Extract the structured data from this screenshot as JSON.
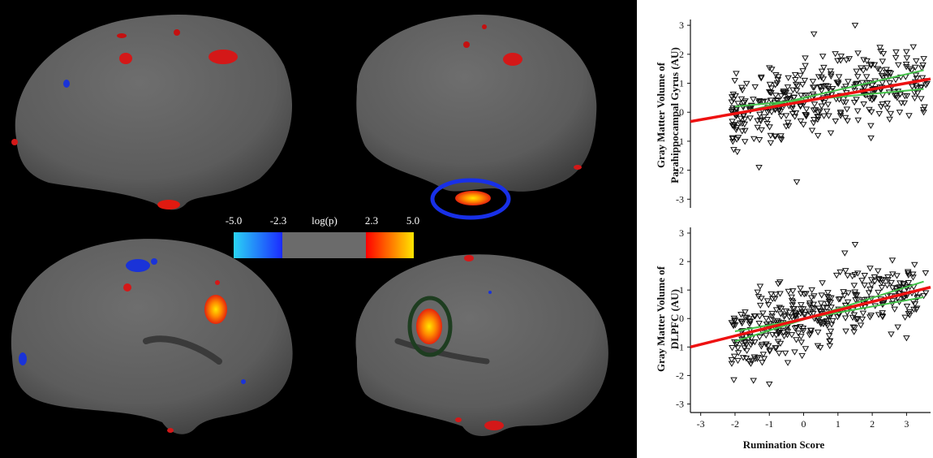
{
  "colorbar": {
    "labels": [
      "-5.0",
      "-2.3",
      "log(p)",
      "2.3",
      "5.0"
    ],
    "colors": {
      "negative_start": "#2ad4f5",
      "negative_end": "#1b2bff",
      "neutral": "#6b6b6b",
      "positive_start": "#ff0000",
      "positive_end": "#ffe600"
    }
  },
  "highlights": {
    "top_right_circle_color": "#1830e8",
    "bottom_right_circle_color": "#1e3d20"
  },
  "chart_data": [
    {
      "type": "scatter",
      "ylabel_lines": [
        "Gray Matter Volume of",
        "Parahippocampal Gyrus (AU)"
      ],
      "xlabel": "",
      "xlim": [
        -3.3,
        3.7
      ],
      "ylim": [
        -3.3,
        3.2
      ],
      "yticks": [
        "-3",
        "-2",
        "-1",
        "0",
        "1",
        "2",
        "3"
      ],
      "marker": "open-triangle-down",
      "fit_line": {
        "x": [
          -3.3,
          3.7
        ],
        "y": [
          -0.32,
          1.15
        ],
        "color": "#ee1111"
      },
      "ci_lines": [
        {
          "x": [
            -2.0,
            3.5
          ],
          "y": [
            -0.05,
            1.45
          ],
          "color": "#44c24a"
        },
        {
          "x": [
            -2.0,
            3.5
          ],
          "y": [
            0.2,
            0.8
          ],
          "color": "#44c24a"
        }
      ],
      "points": {
        "count": 380,
        "seed": 11,
        "x_range": [
          -2.1,
          3.5
        ],
        "slope": 0.21,
        "intercept": 0.38,
        "noise": 0.95,
        "extra": [
          [
            1.5,
            3.0
          ],
          [
            0.3,
            2.7
          ],
          [
            3.5,
            0.0
          ],
          [
            -0.2,
            -2.4
          ],
          [
            -1.3,
            -1.9
          ],
          [
            2.8,
            0.0
          ]
        ]
      }
    },
    {
      "type": "scatter",
      "ylabel_lines": [
        "Gray Matter Volume of",
        "DLPFC (AU)"
      ],
      "xlabel": "Rumination Score",
      "xlim": [
        -3.3,
        3.7
      ],
      "ylim": [
        -3.3,
        3.2
      ],
      "xticks": [
        "-3",
        "-2",
        "-1",
        "0",
        "1",
        "2",
        "3"
      ],
      "yticks": [
        "-3",
        "-2",
        "-1",
        "0",
        "1",
        "2",
        "3"
      ],
      "marker": "open-triangle-down",
      "fit_line": {
        "x": [
          -3.3,
          3.7
        ],
        "y": [
          -1.0,
          1.1
        ],
        "color": "#ee1111"
      },
      "ci_lines": [
        {
          "x": [
            -2.0,
            3.5
          ],
          "y": [
            -0.8,
            1.3
          ],
          "color": "#44c24a"
        },
        {
          "x": [
            -2.0,
            3.5
          ],
          "y": [
            -0.45,
            0.75
          ],
          "color": "#44c24a"
        }
      ],
      "points": {
        "count": 380,
        "seed": 29,
        "x_range": [
          -2.1,
          3.5
        ],
        "slope": 0.3,
        "intercept": 0.0,
        "noise": 0.95,
        "extra": [
          [
            1.5,
            2.6
          ],
          [
            1.2,
            2.3
          ],
          [
            -1.0,
            -2.3
          ],
          [
            3.5,
            0.8
          ],
          [
            -1.9,
            -1.2
          ]
        ]
      }
    }
  ]
}
